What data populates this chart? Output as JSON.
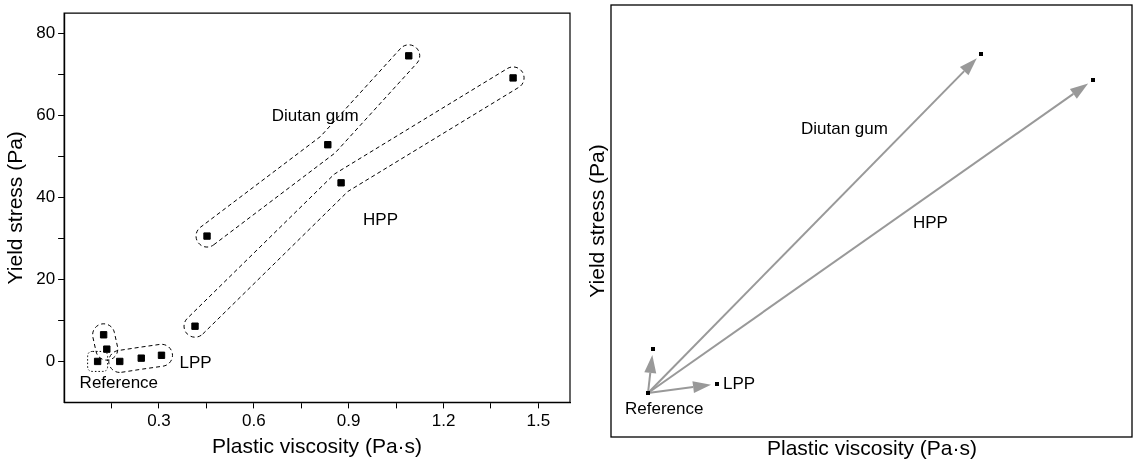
{
  "chart_data": [
    {
      "type": "scatter",
      "xlabel": "Plastic viscosity (Pa·s)",
      "ylabel": "Yield stress (Pa)",
      "marker": "square",
      "xlim": [
        0,
        1.6
      ],
      "ylim": [
        -10,
        85
      ],
      "xticks": [
        {
          "value": 0.15,
          "label": null
        },
        0.3,
        {
          "value": 0.45,
          "label": null
        },
        0.6,
        {
          "value": 0.75,
          "label": null
        },
        0.9,
        {
          "value": 1.05,
          "label": null
        },
        1.2,
        {
          "value": 1.35,
          "label": null
        },
        1.5
      ],
      "yticks": [
        0,
        {
          "value": 10,
          "label": null
        },
        20,
        {
          "value": 30,
          "label": null
        },
        40,
        {
          "value": 50,
          "label": null
        },
        60,
        {
          "value": 70,
          "label": null
        },
        80
      ],
      "grid": false,
      "legend": false,
      "series": [
        {
          "color": "#000000",
          "x": [
            0.106
          ],
          "values": [
            0
          ]
        },
        {
          "color": "#000000",
          "x": [
            0.125,
            0.135
          ],
          "values": [
            6.5,
            3
          ]
        },
        {
          "color": "#000000",
          "x": [
            0.176,
            0.244,
            0.308
          ],
          "values": [
            0,
            0.8,
            1.5
          ]
        },
        {
          "color": "#000000",
          "x": [
            0.414,
            0.876,
            1.42
          ],
          "values": [
            8.6,
            43.6,
            69.2
          ]
        },
        {
          "color": "#000000",
          "x": [
            0.452,
            0.834,
            1.09
          ],
          "values": [
            30.6,
            52.9,
            74.6
          ]
        }
      ],
      "annotations": [
        {
          "text": "Reference",
          "x": 0.106,
          "y": 0
        },
        {
          "text": "LPP",
          "x": 0.308,
          "y": 1.5
        },
        {
          "text": "HPP",
          "x": 0.876,
          "y": 43.6
        },
        {
          "text": "Diutan gum",
          "x": 0.834,
          "y": 52.9
        }
      ]
    },
    {
      "type": "other",
      "xlabel": "Plastic viscosity (Pa·s)",
      "ylabel": "Yield stress (Pa)",
      "annotations": [
        "Diutan gum",
        "HPP",
        "LPP",
        "Reference"
      ]
    }
  ]
}
